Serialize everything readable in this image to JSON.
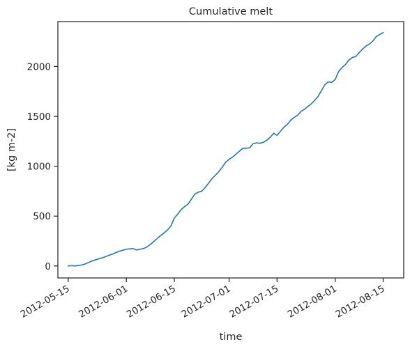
{
  "chart_data": {
    "type": "line",
    "title": "Cumulative melt",
    "xlabel": "time",
    "ylabel": "[kg m-2]",
    "x_ticks": [
      "2012-05-15",
      "2012-06-01",
      "2012-06-15",
      "2012-07-01",
      "2012-07-15",
      "2012-08-01",
      "2012-08-15"
    ],
    "y_ticks": [
      0,
      500,
      1000,
      1500,
      2000
    ],
    "xlim": [
      "2012-05-12",
      "2012-08-21"
    ],
    "ylim": [
      -120,
      2450
    ],
    "grid": false,
    "legend": "none",
    "line_color": "#1f77b4",
    "series": [
      {
        "x": [
          "2012-05-15",
          "2012-05-16",
          "2012-05-17",
          "2012-05-18",
          "2012-05-19",
          "2012-05-20",
          "2012-05-21",
          "2012-05-22",
          "2012-05-23",
          "2012-05-24",
          "2012-05-25",
          "2012-05-26",
          "2012-05-27",
          "2012-05-28",
          "2012-05-29",
          "2012-05-30",
          "2012-05-31",
          "2012-06-01",
          "2012-06-02",
          "2012-06-03",
          "2012-06-04",
          "2012-06-05",
          "2012-06-06",
          "2012-06-07",
          "2012-06-08",
          "2012-06-09",
          "2012-06-10",
          "2012-06-11",
          "2012-06-12",
          "2012-06-13",
          "2012-06-14",
          "2012-06-15",
          "2012-06-16",
          "2012-06-17",
          "2012-06-18",
          "2012-06-19",
          "2012-06-20",
          "2012-06-21",
          "2012-06-22",
          "2012-06-23",
          "2012-06-24",
          "2012-06-25",
          "2012-06-26",
          "2012-06-27",
          "2012-06-28",
          "2012-06-29",
          "2012-06-30",
          "2012-07-01",
          "2012-07-02",
          "2012-07-03",
          "2012-07-04",
          "2012-07-05",
          "2012-07-06",
          "2012-07-07",
          "2012-07-08",
          "2012-07-09",
          "2012-07-10",
          "2012-07-11",
          "2012-07-12",
          "2012-07-13",
          "2012-07-14",
          "2012-07-15",
          "2012-07-16",
          "2012-07-17",
          "2012-07-18",
          "2012-07-19",
          "2012-07-20",
          "2012-07-21",
          "2012-07-22",
          "2012-07-23",
          "2012-07-24",
          "2012-07-25",
          "2012-07-26",
          "2012-07-27",
          "2012-07-28",
          "2012-07-29",
          "2012-07-30",
          "2012-07-31",
          "2012-08-01",
          "2012-08-02",
          "2012-08-03",
          "2012-08-04",
          "2012-08-05",
          "2012-08-06",
          "2012-08-07",
          "2012-08-08",
          "2012-08-09",
          "2012-08-10",
          "2012-08-11",
          "2012-08-12",
          "2012-08-13",
          "2012-08-14",
          "2012-08-15"
        ],
        "y": [
          0,
          3,
          0,
          5,
          10,
          20,
          35,
          50,
          62,
          72,
          82,
          95,
          108,
          120,
          135,
          148,
          158,
          168,
          172,
          173,
          160,
          168,
          175,
          190,
          215,
          245,
          275,
          305,
          330,
          360,
          400,
          480,
          520,
          565,
          595,
          620,
          670,
          720,
          740,
          750,
          785,
          830,
          875,
          910,
          945,
          990,
          1040,
          1070,
          1090,
          1120,
          1150,
          1180,
          1180,
          1185,
          1225,
          1235,
          1230,
          1240,
          1260,
          1290,
          1330,
          1310,
          1350,
          1390,
          1420,
          1460,
          1490,
          1510,
          1550,
          1570,
          1600,
          1625,
          1660,
          1700,
          1760,
          1820,
          1845,
          1840,
          1870,
          1950,
          1990,
          2020,
          2065,
          2090,
          2100,
          2140,
          2175,
          2205,
          2225,
          2255,
          2300,
          2320,
          2340
        ]
      }
    ]
  }
}
